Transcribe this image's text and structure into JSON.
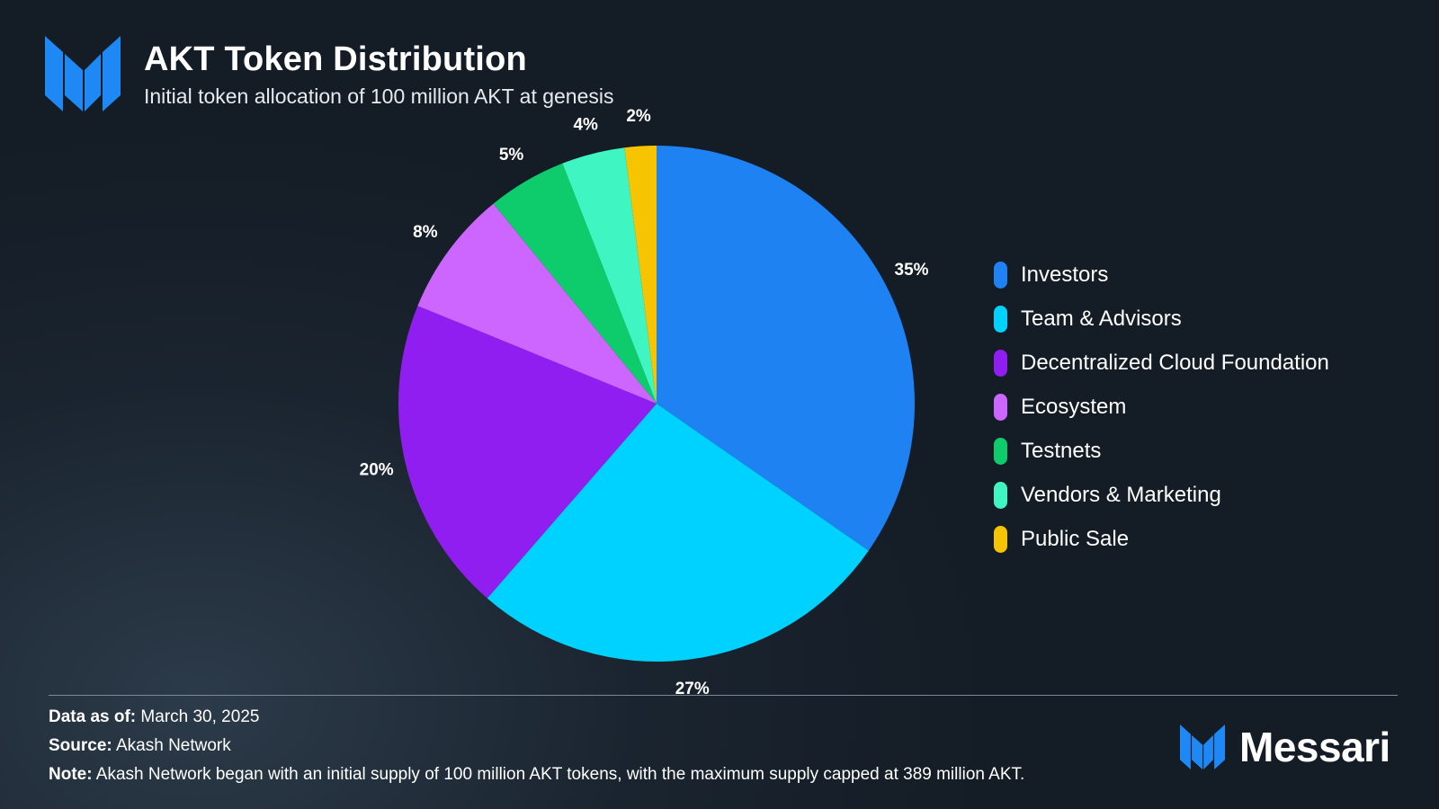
{
  "header": {
    "title": "AKT Token Distribution",
    "subtitle": "Initial token allocation of 100 million AKT at genesis"
  },
  "chart_data": {
    "type": "pie",
    "title": "AKT Token Distribution",
    "subtitle": "Initial token allocation of 100 million AKT at genesis",
    "categories": [
      "Investors",
      "Team & Advisors",
      "Decentralized Cloud Foundation",
      "Ecosystem",
      "Testnets",
      "Vendors & Marketing",
      "Public Sale"
    ],
    "values": [
      35,
      27,
      20,
      8,
      5,
      4,
      2
    ],
    "labels": [
      "35%",
      "27%",
      "20%",
      "8%",
      "5%",
      "4%",
      "2%"
    ],
    "colors": [
      "#1f82f2",
      "#00d2ff",
      "#901ef0",
      "#cc66ff",
      "#0ecb6c",
      "#3ff5c1",
      "#f7c401"
    ],
    "legend_position": "right"
  },
  "legend": {
    "items": [
      {
        "label": "Investors",
        "color": "#1f82f2"
      },
      {
        "label": "Team & Advisors",
        "color": "#00d2ff"
      },
      {
        "label": "Decentralized Cloud Foundation",
        "color": "#901ef0"
      },
      {
        "label": "Ecosystem",
        "color": "#cc66ff"
      },
      {
        "label": "Testnets",
        "color": "#0ecb6c"
      },
      {
        "label": "Vendors & Marketing",
        "color": "#3ff5c1"
      },
      {
        "label": "Public Sale",
        "color": "#f7c401"
      }
    ]
  },
  "footer": {
    "date_label": "Data as of:",
    "date_value": "March 30, 2025",
    "source_label": "Source:",
    "source_value": "Akash Network",
    "note_label": "Note:",
    "note_value": "Akash Network began with an initial supply of 100 million AKT tokens, with the maximum supply capped at 389 million AKT."
  },
  "brand": {
    "name": "Messari",
    "icon": "messari-logo-icon",
    "color": "#1e88f5"
  }
}
